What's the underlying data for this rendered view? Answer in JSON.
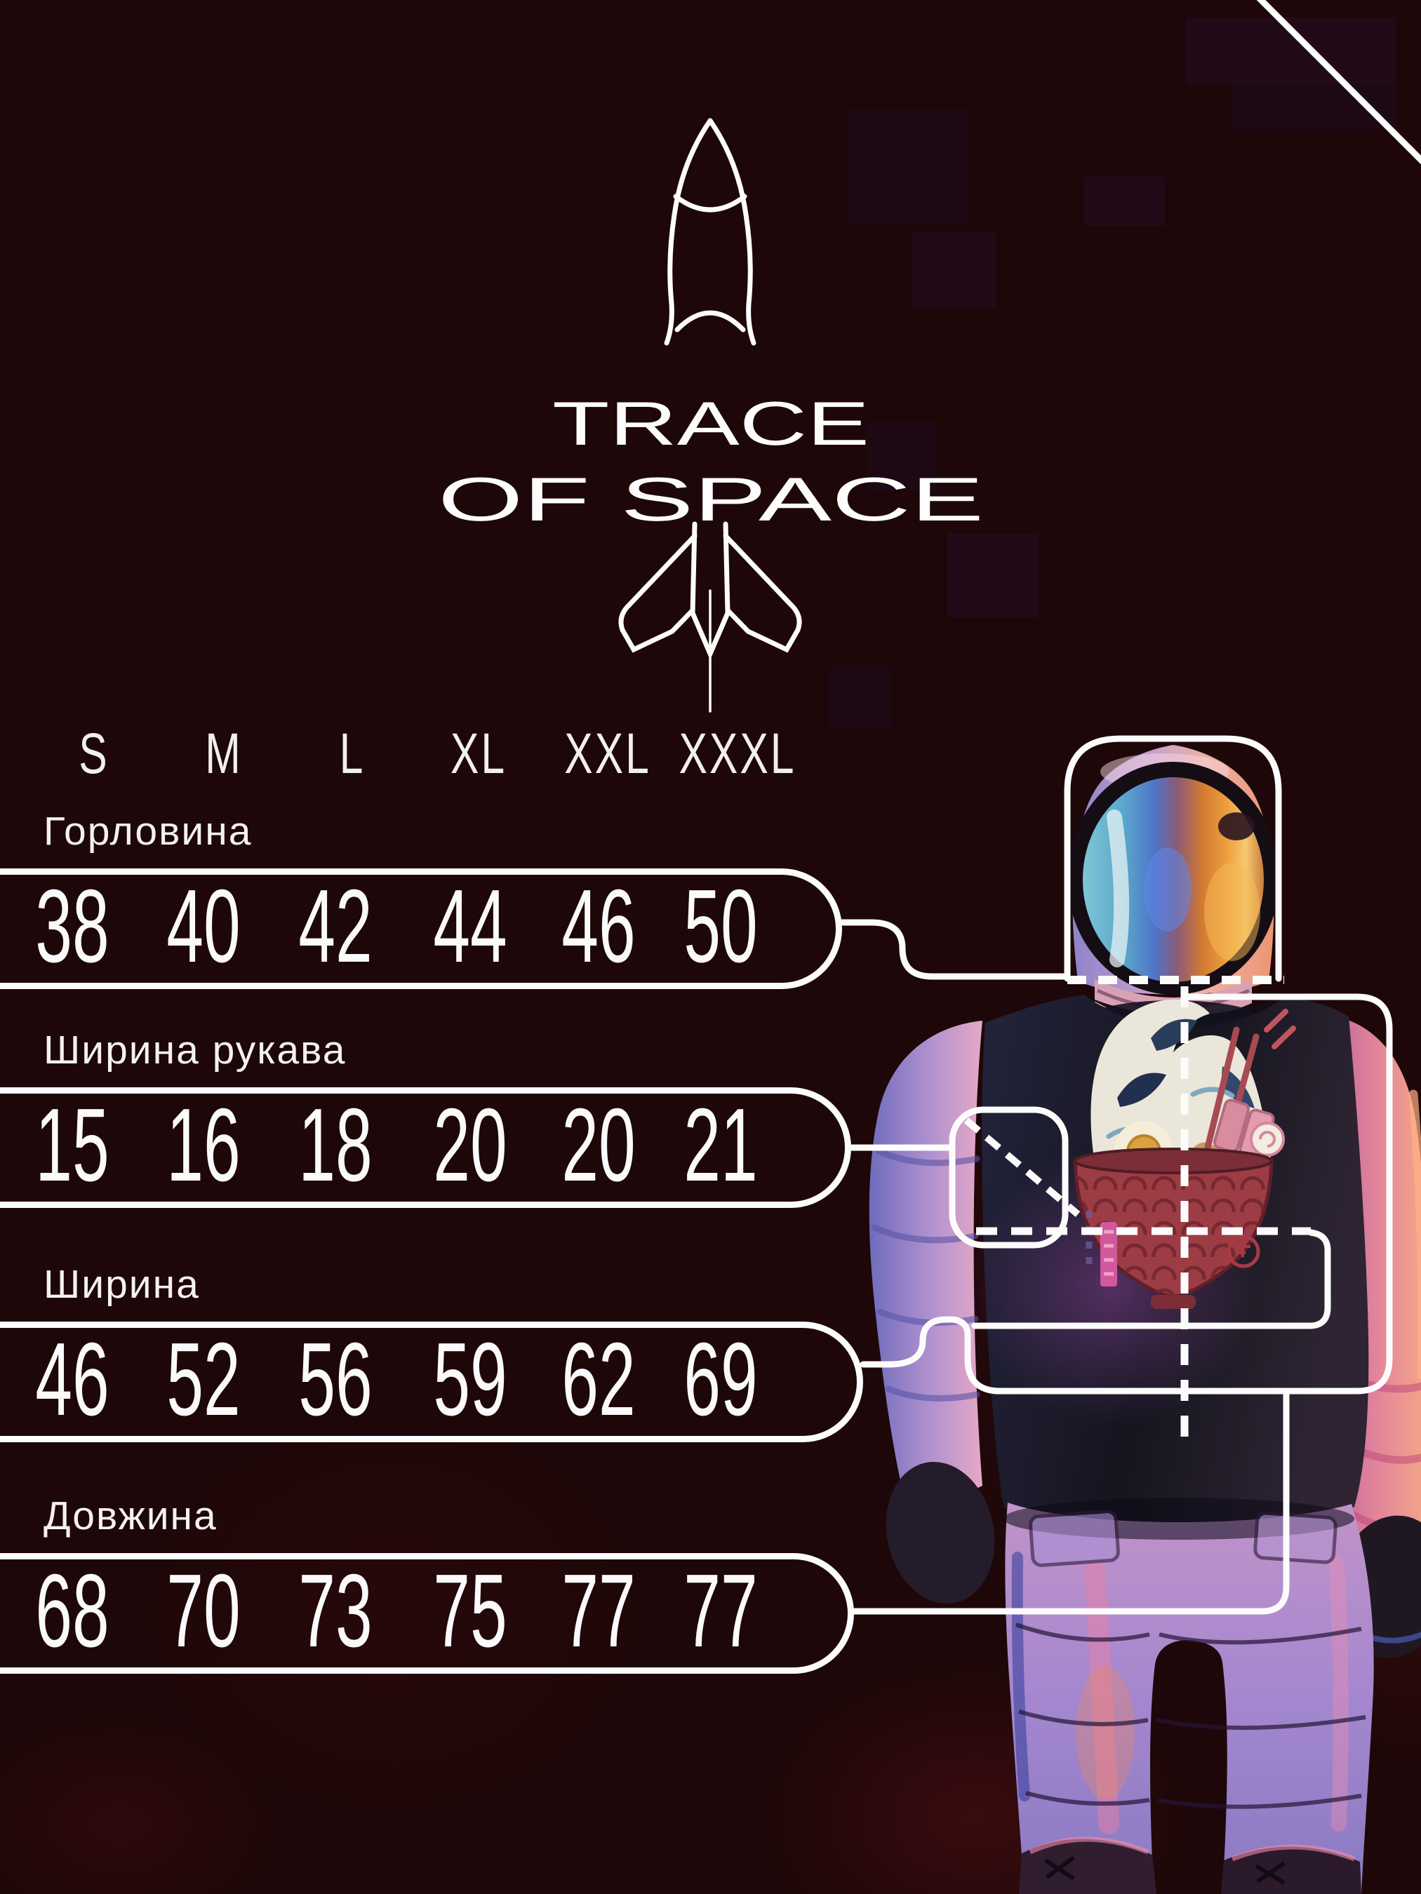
{
  "brand": {
    "name_line1": "TRACE",
    "name_line2": "OF SPACE",
    "logo_icon": "rocket-logo-icon"
  },
  "size_chart": {
    "sizes": [
      "S",
      "M",
      "L",
      "XL",
      "XXL",
      "XXXL"
    ],
    "rows": [
      {
        "label": "Горловина",
        "values": [
          "38",
          "40",
          "42",
          "44",
          "46",
          "50"
        ]
      },
      {
        "label": "Ширина рукава",
        "values": [
          "15",
          "16",
          "18",
          "20",
          "20",
          "21"
        ]
      },
      {
        "label": "Ширина",
        "values": [
          "46",
          "52",
          "56",
          "59",
          "62",
          "69"
        ]
      },
      {
        "label": "Довжина",
        "values": [
          "68",
          "70",
          "73",
          "75",
          "77",
          "77"
        ]
      }
    ]
  },
  "chart_data": {
    "type": "table",
    "columns": [
      "S",
      "M",
      "L",
      "XL",
      "XXL",
      "XXXL"
    ],
    "rows": [
      {
        "label": "Горловина",
        "values": [
          38,
          40,
          42,
          44,
          46,
          50
        ]
      },
      {
        "label": "Ширина рукава",
        "values": [
          15,
          16,
          18,
          20,
          20,
          21
        ]
      },
      {
        "label": "Ширина",
        "values": [
          46,
          52,
          56,
          59,
          62,
          69
        ]
      },
      {
        "label": "Довжина",
        "values": [
          68,
          70,
          73,
          75,
          77,
          77
        ]
      }
    ],
    "notes": "Measurement callouts point to astronaut photo: neckline box on helmet, sleeve box on left sleeve, width box around chest, length line down to hem"
  },
  "decorations": {
    "astronaut": "astronaut-in-ramen-wave-tshirt-photo",
    "corner_line": "diagonal-corner-line",
    "measure_marks": [
      "neckline-frame",
      "sleeve-frame",
      "chest-frame",
      "length-line",
      "center-dashed-line",
      "chest-dashed-line",
      "sleeve-dashed-line",
      "neck-dashed-line"
    ]
  },
  "colors": {
    "background": "#1e0708",
    "line_white": "#fcfcfc",
    "text": "#f4f1f2",
    "bowl_red": "#9c3c44",
    "banner_pink": "#d1589c",
    "chopstick_red": "#a84a52",
    "visor_teal": "#6fbcd0",
    "visor_orange": "#ee9f3f",
    "suit_pink": "#e8a0bd",
    "suit_blue": "#7a74c0",
    "shirt_navy": "#1b1b2c"
  }
}
